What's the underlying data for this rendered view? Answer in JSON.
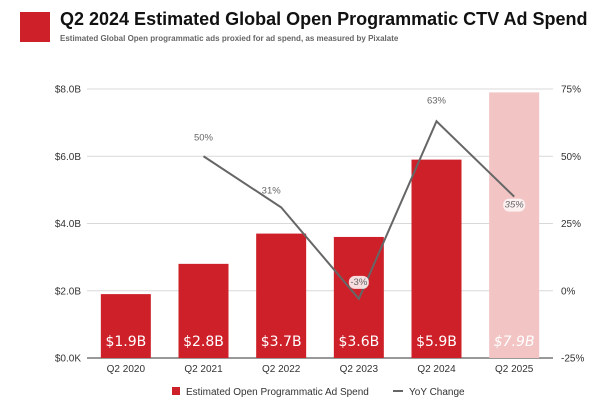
{
  "title": "Q2 2024 Estimated Global Open Programmatic CTV Ad Spend",
  "subtitle": "Estimated Global Open programmatic ads proxied for ad spend, as measured by Pixalate",
  "colors": {
    "brand": "#CE2029",
    "bar": "#CE2029",
    "bar_projected": "#F2C4C4",
    "line": "#666666"
  },
  "chart_data": {
    "type": "bar",
    "categories": [
      "Q2 2020",
      "Q2 2021",
      "Q2 2022",
      "Q2 2023",
      "Q2 2024",
      "Q2 2025"
    ],
    "series": [
      {
        "name": "Estimated Open Programmatic Ad Spend",
        "axis": "left",
        "values": [
          1.9,
          2.8,
          3.7,
          3.6,
          5.9,
          7.9
        ],
        "labels": [
          "$1.9B",
          "$2.8B",
          "$3.7B",
          "$3.6B",
          "$5.9B",
          "$7.9B"
        ],
        "projected": [
          false,
          false,
          false,
          false,
          false,
          true
        ]
      },
      {
        "name": "YoY Change",
        "type": "line",
        "axis": "right",
        "values": [
          null,
          50,
          31,
          -3,
          63,
          35
        ],
        "labels": [
          "",
          "50%",
          "31%",
          "-3%",
          "63%",
          "35%"
        ]
      }
    ],
    "y_left": {
      "lim": [
        0,
        8
      ],
      "ticks": [
        0,
        2,
        4,
        6,
        8
      ],
      "tick_labels": [
        "$0.0K",
        "$2.0B",
        "$4.0B",
        "$6.0B",
        "$8.0B"
      ]
    },
    "y_right": {
      "lim": [
        -25,
        75
      ],
      "ticks": [
        -25,
        0,
        25,
        50,
        75
      ],
      "tick_labels": [
        "-25%",
        "0%",
        "25%",
        "50%",
        "75%"
      ]
    },
    "grid": true,
    "legend": "bottom"
  }
}
